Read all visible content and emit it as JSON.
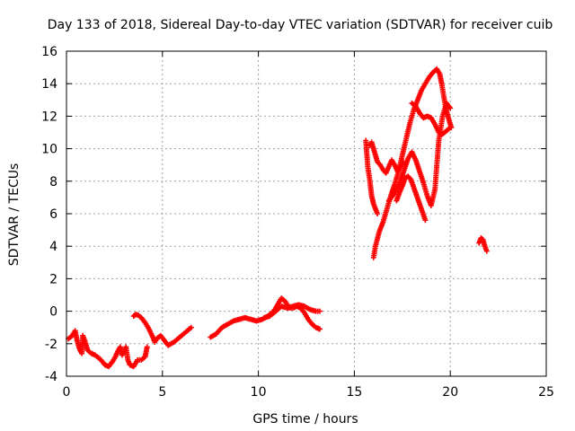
{
  "chart_data": {
    "type": "scatter",
    "title": "Day 133 of 2018, Sidereal Day-to-day VTEC variation (SDTVAR) for receiver cuib",
    "xlabel": "GPS time / hours",
    "ylabel": "SDTVAR / TECUs",
    "xlim": [
      0,
      25
    ],
    "ylim": [
      -4,
      16
    ],
    "xticks": [
      "0",
      "5",
      "10",
      "15",
      "20",
      "25"
    ],
    "yticks": [
      "-4",
      "-2",
      "0",
      "2",
      "4",
      "6",
      "8",
      "10",
      "12",
      "14",
      "16"
    ],
    "grid": true,
    "legend": "none",
    "marker": "plus",
    "color": "#ff0000",
    "segments": [
      {
        "x": [
          0.1,
          0.3,
          0.45,
          0.55,
          0.7,
          0.8,
          0.85,
          0.95,
          1.1,
          1.3,
          1.5,
          1.8,
          2.0,
          2.2,
          2.4,
          2.55,
          2.7,
          2.8,
          2.9,
          3.0,
          3.1,
          3.2,
          3.3,
          3.5,
          3.7,
          3.9,
          4.1,
          4.2
        ],
        "y": [
          -1.7,
          -1.5,
          -1.2,
          -1.8,
          -2.4,
          -2.6,
          -1.5,
          -1.8,
          -2.4,
          -2.6,
          -2.7,
          -3.0,
          -3.3,
          -3.4,
          -3.1,
          -2.8,
          -2.4,
          -2.2,
          -2.7,
          -2.5,
          -2.2,
          -3.0,
          -3.3,
          -3.4,
          -3.0,
          -3.0,
          -2.8,
          -2.2
        ]
      },
      {
        "x": [
          3.5,
          3.6,
          3.75,
          3.9,
          4.1,
          4.3,
          4.5,
          4.6,
          4.7,
          4.9,
          5.1,
          5.3,
          5.6,
          5.9,
          6.2,
          6.5
        ],
        "y": [
          -0.3,
          -0.2,
          -0.25,
          -0.4,
          -0.7,
          -1.1,
          -1.6,
          -1.9,
          -1.7,
          -1.5,
          -1.8,
          -2.1,
          -1.9,
          -1.6,
          -1.3,
          -1.0
        ]
      },
      {
        "x": [
          7.5,
          7.8,
          8.1,
          8.4,
          8.7,
          9.0,
          9.3,
          9.6,
          9.9,
          10.2,
          10.5,
          10.8,
          11.0,
          11.2,
          11.4,
          11.6,
          11.8,
          12.0,
          12.2,
          12.4,
          12.6,
          12.8,
          13.0,
          13.2
        ],
        "y": [
          -1.6,
          -1.4,
          -1.0,
          -0.8,
          -0.6,
          -0.5,
          -0.4,
          -0.5,
          -0.6,
          -0.5,
          -0.3,
          0.0,
          0.4,
          0.8,
          0.6,
          0.2,
          0.2,
          0.3,
          0.2,
          -0.1,
          -0.5,
          -0.8,
          -1.0,
          -1.1
        ]
      },
      {
        "x": [
          10.3,
          10.6,
          10.9,
          11.2,
          11.5,
          11.8,
          12.1,
          12.4,
          12.7,
          13.0,
          13.2
        ],
        "y": [
          -0.4,
          -0.3,
          0.0,
          0.3,
          0.2,
          0.3,
          0.4,
          0.3,
          0.1,
          0.0,
          0.0
        ]
      },
      {
        "x": [
          15.6,
          15.65,
          15.7,
          15.8,
          15.9,
          16.0,
          16.1,
          16.2
        ],
        "y": [
          10.5,
          9.7,
          8.9,
          8.1,
          7.1,
          6.6,
          6.3,
          6.0
        ]
      },
      {
        "x": [
          15.8,
          15.9,
          16.0,
          16.1,
          16.2,
          16.35,
          16.5,
          16.65,
          16.8,
          16.95,
          17.1,
          17.25,
          17.4,
          17.55
        ],
        "y": [
          10.2,
          10.4,
          10.0,
          9.6,
          9.2,
          9.0,
          8.7,
          8.5,
          8.9,
          9.3,
          9.0,
          8.6,
          8.9,
          9.2
        ]
      },
      {
        "x": [
          16.0,
          16.1,
          16.3,
          16.5,
          16.7,
          16.9,
          17.1,
          17.3,
          17.5,
          17.7,
          17.9,
          18.1,
          18.3,
          18.5,
          18.7,
          18.9,
          19.1,
          19.3,
          19.45,
          19.55,
          19.65,
          19.75,
          19.85,
          19.95,
          20.05
        ],
        "y": [
          3.3,
          4.0,
          4.9,
          5.5,
          6.3,
          7.1,
          7.8,
          8.6,
          9.6,
          10.6,
          11.6,
          12.4,
          13.0,
          13.6,
          14.0,
          14.4,
          14.7,
          14.9,
          14.6,
          14.0,
          13.3,
          12.6,
          12.1,
          11.7,
          11.3
        ]
      },
      {
        "x": [
          17.2,
          17.35,
          17.5,
          17.65,
          17.8,
          17.95,
          18.1,
          18.25,
          18.4,
          18.55,
          18.7
        ],
        "y": [
          6.8,
          7.3,
          7.7,
          8.2,
          8.3,
          8.1,
          7.6,
          7.1,
          6.6,
          6.1,
          5.6
        ]
      },
      {
        "x": [
          16.8,
          17.0,
          17.2,
          17.4,
          17.6,
          17.8,
          18.0,
          18.2,
          18.4,
          18.6,
          18.8,
          19.0,
          19.2,
          19.4,
          19.6,
          19.8,
          20.0
        ],
        "y": [
          6.8,
          7.1,
          7.5,
          8.0,
          8.7,
          9.4,
          9.8,
          9.3,
          8.6,
          7.9,
          7.1,
          6.5,
          7.5,
          10.5,
          12.0,
          12.8,
          12.5
        ]
      },
      {
        "x": [
          18.0,
          18.2,
          18.4,
          18.6,
          18.8,
          19.0,
          19.2,
          19.4,
          19.6,
          19.8,
          20.0
        ],
        "y": [
          12.8,
          12.6,
          12.2,
          11.9,
          12.0,
          11.9,
          11.5,
          11.0,
          10.9,
          11.1,
          11.3
        ]
      },
      {
        "x": [
          21.5,
          21.6,
          21.7,
          21.8,
          21.9
        ],
        "y": [
          4.2,
          4.5,
          4.4,
          4.0,
          3.7
        ]
      }
    ]
  }
}
